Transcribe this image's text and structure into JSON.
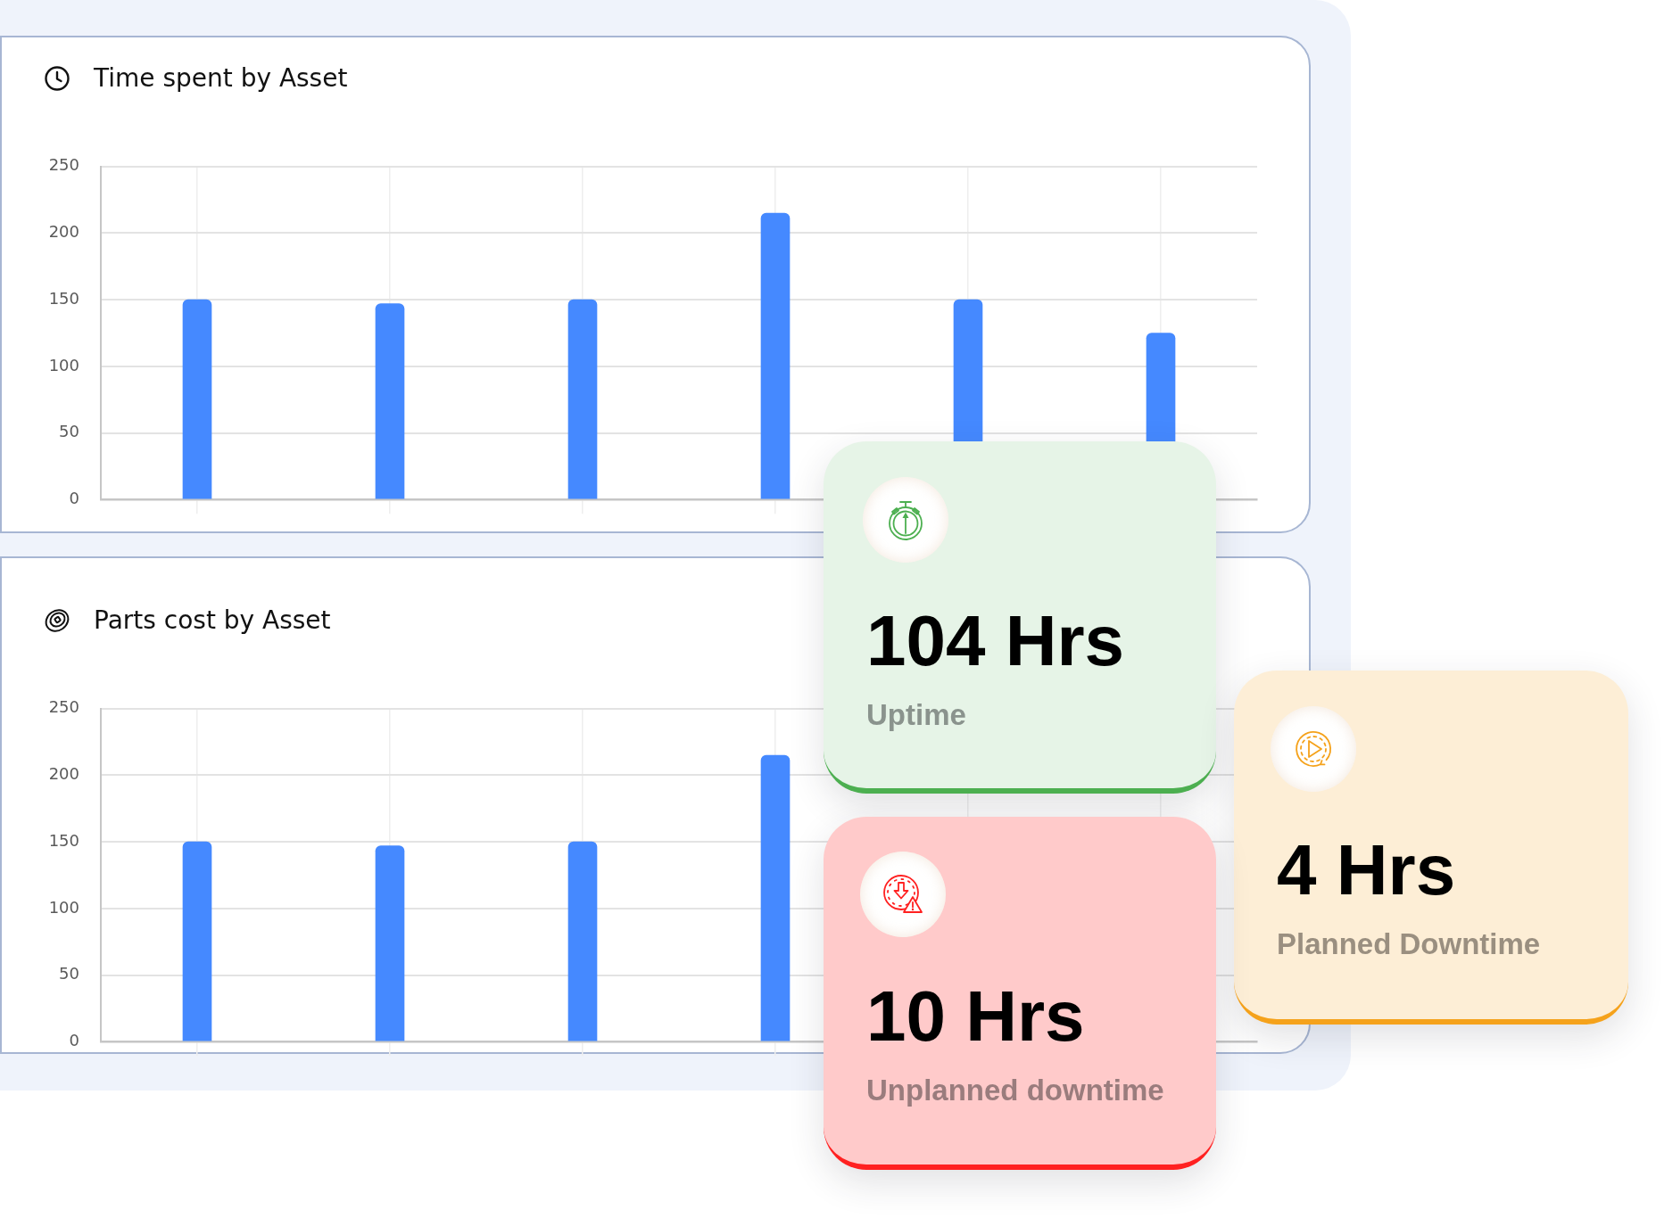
{
  "chart_data": [
    {
      "type": "bar",
      "title": "Time spent by Asset",
      "categories": [
        null,
        null,
        null,
        null,
        null,
        null
      ],
      "values": [
        150,
        147,
        150,
        215,
        150,
        125
      ],
      "color": "#4589ff",
      "ylim": [
        0,
        250
      ],
      "yticks": [
        0,
        50,
        100,
        150,
        200,
        250
      ],
      "grid": true
    },
    {
      "type": "bar",
      "title": "Parts cost by Asset",
      "categories": [
        null,
        null,
        null,
        null,
        null,
        null
      ],
      "values": [
        150,
        147,
        150,
        215,
        null,
        null
      ],
      "color": "#4589ff",
      "ylim": [
        0,
        250
      ],
      "yticks": [
        0,
        50,
        100,
        150,
        200,
        250
      ],
      "grid": true
    },
    {
      "type": "other",
      "title": "104 Hrs",
      "subtitle": "Uptime",
      "color": "#4caf50"
    },
    {
      "type": "other",
      "title": "4 Hrs",
      "subtitle": "Planned Downtime",
      "color": "#f5a21b"
    },
    {
      "type": "other",
      "title": "10 Hrs",
      "subtitle": "Unplanned downtime",
      "color": "#ff2121"
    }
  ]
}
